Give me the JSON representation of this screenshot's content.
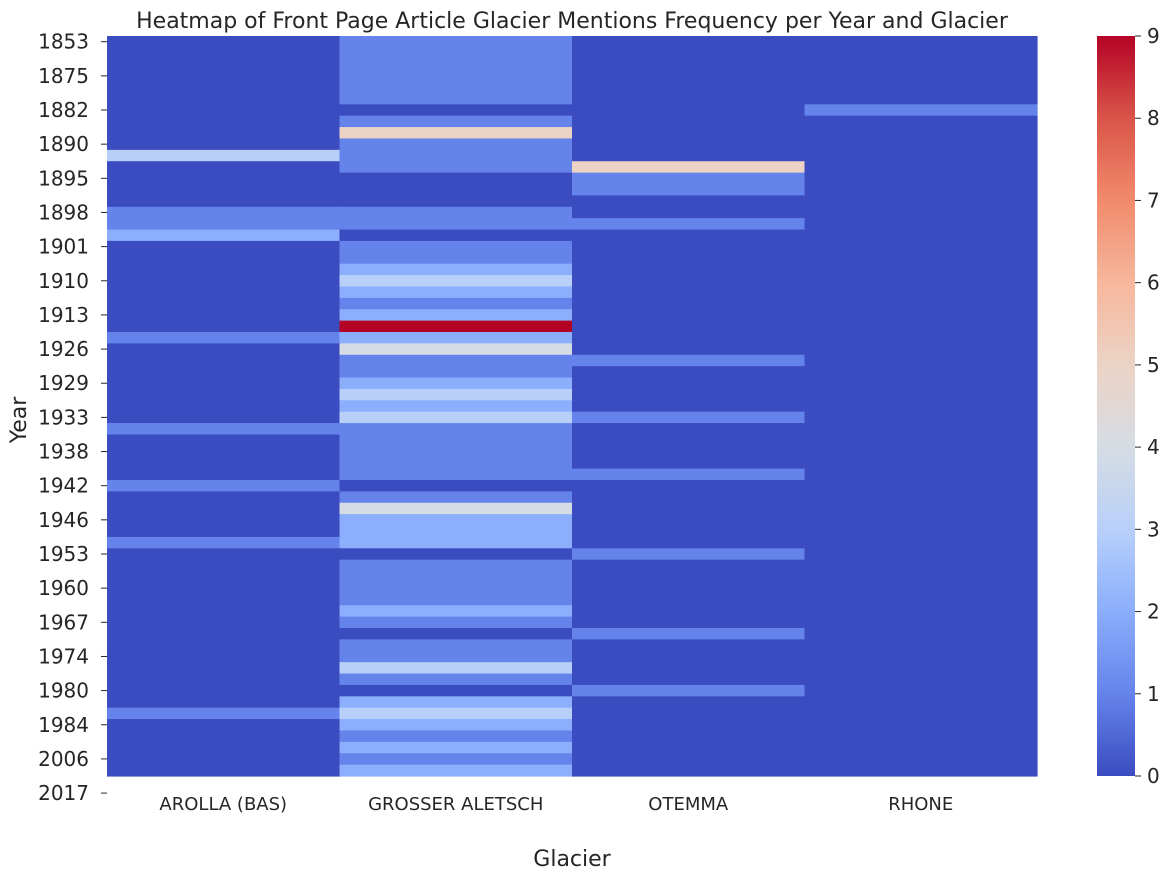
{
  "chart_data": {
    "type": "heatmap",
    "title": "Heatmap of Front Page Article Glacier Mentions Frequency per Year and Glacier",
    "xlabel": "Glacier",
    "ylabel": "Year",
    "columns": [
      "AROLLA (BAS)",
      "GROSSER ALETSCH",
      "OTEMMA",
      "RHONE"
    ],
    "year_tick_labels": [
      "1853",
      "1875",
      "1882",
      "1890",
      "1895",
      "1898",
      "1901",
      "1910",
      "1913",
      "1926",
      "1929",
      "1933",
      "1938",
      "1942",
      "1946",
      "1953",
      "1960",
      "1967",
      "1974",
      "1980",
      "1984",
      "2006",
      "2017"
    ],
    "rows": [
      [
        0,
        1,
        0,
        0
      ],
      [
        0,
        1,
        0,
        0
      ],
      [
        0,
        1,
        0,
        0
      ],
      [
        0,
        1,
        0,
        0
      ],
      [
        0,
        1,
        0,
        0
      ],
      [
        0,
        1,
        0,
        0
      ],
      [
        0,
        0,
        0,
        1
      ],
      [
        0,
        1,
        0,
        0
      ],
      [
        0,
        5,
        0,
        0
      ],
      [
        0,
        1,
        0,
        0
      ],
      [
        3,
        1,
        0,
        0
      ],
      [
        0,
        1,
        5,
        0
      ],
      [
        0,
        0,
        1,
        0
      ],
      [
        0,
        0,
        1,
        0
      ],
      [
        0,
        0,
        0,
        0
      ],
      [
        1,
        1,
        0,
        0
      ],
      [
        1,
        1,
        1,
        0
      ],
      [
        2,
        0,
        0,
        0
      ],
      [
        0,
        1,
        0,
        0
      ],
      [
        0,
        1,
        0,
        0
      ],
      [
        0,
        2,
        0,
        0
      ],
      [
        0,
        3,
        0,
        0
      ],
      [
        0,
        2,
        0,
        0
      ],
      [
        0,
        1,
        0,
        0
      ],
      [
        0,
        2,
        0,
        0
      ],
      [
        0,
        9,
        0,
        0
      ],
      [
        1,
        2,
        0,
        0
      ],
      [
        0,
        4,
        0,
        0
      ],
      [
        0,
        1,
        1,
        0
      ],
      [
        0,
        1,
        0,
        0
      ],
      [
        0,
        2,
        0,
        0
      ],
      [
        0,
        3,
        0,
        0
      ],
      [
        0,
        2,
        0,
        0
      ],
      [
        0,
        3,
        1,
        0
      ],
      [
        1,
        1,
        0,
        0
      ],
      [
        0,
        1,
        0,
        0
      ],
      [
        0,
        1,
        0,
        0
      ],
      [
        0,
        1,
        0,
        0
      ],
      [
        0,
        1,
        1,
        0
      ],
      [
        1,
        0,
        0,
        0
      ],
      [
        0,
        1,
        0,
        0
      ],
      [
        0,
        4,
        0,
        0
      ],
      [
        0,
        2,
        0,
        0
      ],
      [
        0,
        2,
        0,
        0
      ],
      [
        1,
        2,
        0,
        0
      ],
      [
        0,
        0,
        1,
        0
      ],
      [
        0,
        1,
        0,
        0
      ],
      [
        0,
        1,
        0,
        0
      ],
      [
        0,
        1,
        0,
        0
      ],
      [
        0,
        1,
        0,
        0
      ],
      [
        0,
        2,
        0,
        0
      ],
      [
        0,
        1,
        0,
        0
      ],
      [
        0,
        0,
        1,
        0
      ],
      [
        0,
        1,
        0,
        0
      ],
      [
        0,
        1,
        0,
        0
      ],
      [
        0,
        3,
        0,
        0
      ],
      [
        0,
        1,
        0,
        0
      ],
      [
        0,
        0,
        1,
        0
      ],
      [
        0,
        2,
        0,
        0
      ],
      [
        1,
        3,
        0,
        0
      ],
      [
        0,
        2,
        0,
        0
      ],
      [
        0,
        1,
        0,
        0
      ],
      [
        0,
        2,
        0,
        0
      ],
      [
        0,
        1,
        0,
        0
      ],
      [
        0,
        2,
        0,
        0
      ]
    ],
    "colorbar": {
      "colormap": "coolwarm",
      "min": 0,
      "max": 9,
      "ticks": [
        0,
        1,
        2,
        3,
        4,
        5,
        6,
        7,
        8,
        9
      ]
    },
    "grid": false,
    "legend": "colorbar-right"
  }
}
